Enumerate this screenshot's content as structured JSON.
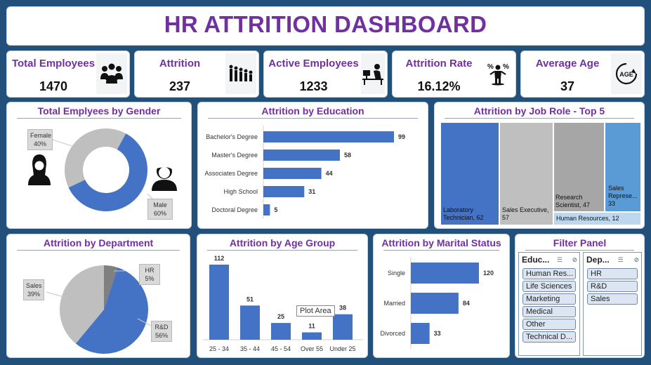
{
  "dashboard": {
    "title": "HR ATTRITION DASHBOARD"
  },
  "kpis": [
    {
      "label": "Total Employees",
      "value": "1470",
      "icon": "people-group-icon"
    },
    {
      "label": "Attrition",
      "value": "237",
      "icon": "people-leaving-icon"
    },
    {
      "label": "Active Employees",
      "value": "1233",
      "icon": "person-at-desk-icon"
    },
    {
      "label": "Attrition Rate",
      "value": "16.12%",
      "icon": "person-percent-icon"
    },
    {
      "label": "Average Age",
      "value": "37",
      "icon": "age-cycle-icon"
    }
  ],
  "colors": {
    "title": "#7030a0",
    "bar": "#4472c4",
    "grey": "#bfbfbf",
    "dark_grey": "#808080",
    "light_blue": "#5b9bd5"
  },
  "gender": {
    "title": "Total Emplyees by Gender",
    "female_label": "Female",
    "female_pct": "40%",
    "male_label": "Male",
    "male_pct": "60%"
  },
  "education": {
    "title": "Attrition by Education"
  },
  "job_role": {
    "title": "Attrition by Job Role - Top 5",
    "tiles": [
      {
        "label": "Laboratory Technician, 62",
        "value": 62
      },
      {
        "label": "Sales Executive, 57",
        "value": 57
      },
      {
        "label": "Research Scientist, 47",
        "value": 47
      },
      {
        "label": "Sales Represe... 33",
        "value": 33
      },
      {
        "label": "Human Resources, 12",
        "value": 12
      }
    ]
  },
  "department": {
    "title": "Attrition by Department",
    "hr_label": "HR",
    "hr_pct": "5%",
    "sales_label": "Sales",
    "sales_pct": "39%",
    "rd_label": "R&D",
    "rd_pct": "56%"
  },
  "age_group": {
    "title": "Attrition by Age Group",
    "tooltip": "Plot Area"
  },
  "marital": {
    "title": "Attrition by Marital Status"
  },
  "filter_panel": {
    "title": "Filter Panel",
    "education": {
      "header": "Educ...",
      "items": [
        "Human Res...",
        "Life Sciences",
        "Marketing",
        "Medical",
        "Other",
        "Technical D..."
      ]
    },
    "department": {
      "header": "Dep...",
      "items": [
        "HR",
        "R&D",
        "Sales"
      ]
    }
  },
  "chart_data": [
    {
      "type": "pie",
      "title": "Total Emplyees by Gender",
      "categories": [
        "Female",
        "Male"
      ],
      "values": [
        40,
        60
      ],
      "donut": true
    },
    {
      "type": "bar",
      "orientation": "horizontal",
      "title": "Attrition by Education",
      "categories": [
        "Bachelor's Degree",
        "Master's Degree",
        "Associates Degree",
        "High School",
        "Doctoral Degree"
      ],
      "values": [
        99,
        58,
        44,
        31,
        5
      ]
    },
    {
      "type": "heatmap",
      "title": "Attrition by Job Role - Top 5",
      "categories": [
        "Laboratory Technician",
        "Sales Executive",
        "Research Scientist",
        "Sales Represe...",
        "Human Resources"
      ],
      "values": [
        62,
        57,
        47,
        33,
        12
      ]
    },
    {
      "type": "pie",
      "title": "Attrition by Department",
      "categories": [
        "HR",
        "Sales",
        "R&D"
      ],
      "values": [
        5,
        39,
        56
      ]
    },
    {
      "type": "bar",
      "title": "Attrition by Age Group",
      "categories": [
        "25 - 34",
        "35 - 44",
        "45 - 54",
        "Over 55",
        "Under 25"
      ],
      "values": [
        112,
        51,
        25,
        11,
        38
      ]
    },
    {
      "type": "bar",
      "orientation": "horizontal",
      "title": "Attrition by Marital Status",
      "categories": [
        "Single",
        "Married",
        "Divorced"
      ],
      "values": [
        120,
        84,
        33
      ]
    }
  ]
}
